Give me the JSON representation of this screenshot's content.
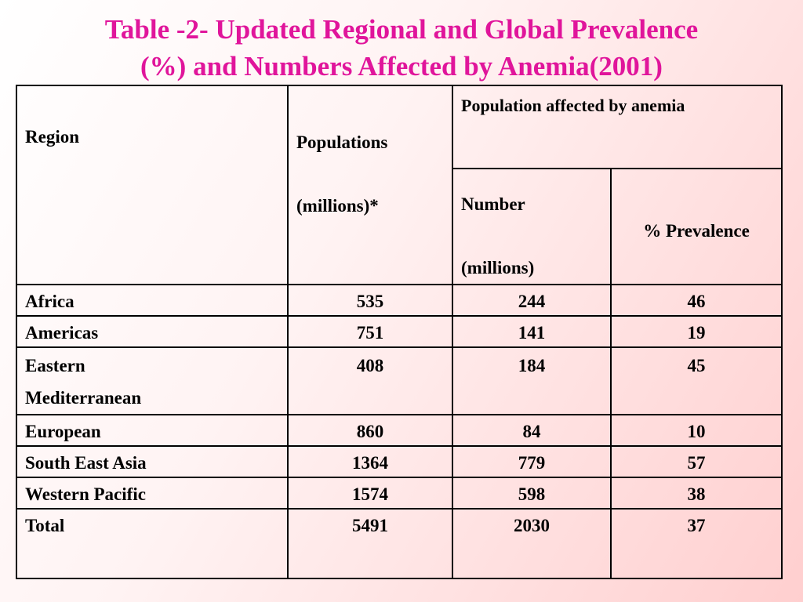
{
  "title": {
    "line1": "Table -2- Updated Regional and Global Prevalence",
    "line2": "(%) and Numbers Affected by Anemia(2001)"
  },
  "table": {
    "headers": {
      "region": "Region",
      "populations_line1": "Populations",
      "populations_line2": "(millions)*",
      "affected": "Population affected by anemia",
      "number_line1": "Number",
      "number_line2": "(millions)",
      "prevalence": "% Prevalence"
    },
    "rows": [
      {
        "region": "Africa",
        "population": "535",
        "number": "244",
        "prevalence": "46"
      },
      {
        "region": "Americas",
        "population": "751",
        "number": "141",
        "prevalence": "19"
      },
      {
        "region_line1": "Eastern",
        "region_line2": "Mediterranean",
        "population": "408",
        "number": "184",
        "prevalence": "45"
      },
      {
        "region": "European",
        "population": "860",
        "number": "84",
        "prevalence": "10"
      },
      {
        "region": "South East Asia",
        "population": "1364",
        "number": "779",
        "prevalence": "57"
      },
      {
        "region": "Western Pacific",
        "population": "1574",
        "number": "598",
        "prevalence": "38"
      },
      {
        "region": "Total",
        "population": "5491",
        "number": "2030",
        "prevalence": "37"
      }
    ]
  },
  "colors": {
    "title": "#e0159b",
    "background_accent": "#ffcfcf"
  }
}
